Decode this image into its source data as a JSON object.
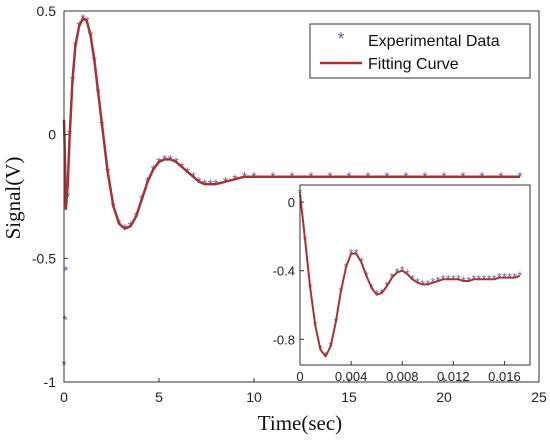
{
  "chart_data": [
    {
      "type": "line",
      "xlabel": "Time(sec)",
      "ylabel": "Signal(V)",
      "xlim": [
        0,
        25
      ],
      "ylim": [
        -1,
        0.5
      ],
      "x_ticks": [
        "0",
        "5",
        "10",
        "15",
        "20",
        "25"
      ],
      "y_ticks": [
        "0.5",
        "0",
        "-0.5",
        "-1"
      ],
      "legend": {
        "placement": "top-right",
        "entries": [
          "Experimental Data",
          "Fitting Curve"
        ]
      },
      "series": [
        {
          "name": "Experimental Data",
          "marker": "asterisk",
          "color": "#5b6bb5",
          "x": [
            0,
            0.05,
            0.1,
            0.2,
            0.3,
            0.45,
            0.6,
            0.8,
            1.0,
            1.2,
            1.4,
            1.6,
            1.8,
            2.0,
            2.3,
            2.6,
            2.9,
            3.2,
            3.5,
            3.8,
            4.1,
            4.4,
            4.7,
            5.0,
            5.3,
            5.6,
            5.9,
            6.2,
            6.5,
            6.8,
            7.1,
            7.4,
            7.7,
            8.0,
            8.5,
            9.0,
            9.5,
            10,
            11,
            12,
            13,
            14,
            15,
            16,
            17,
            18,
            19,
            20,
            21,
            22,
            23,
            24
          ],
          "y": [
            -0.93,
            -0.75,
            -0.55,
            -0.25,
            0.0,
            0.22,
            0.36,
            0.44,
            0.47,
            0.46,
            0.4,
            0.3,
            0.17,
            0.04,
            -0.15,
            -0.29,
            -0.36,
            -0.38,
            -0.37,
            -0.33,
            -0.26,
            -0.19,
            -0.14,
            -0.11,
            -0.1,
            -0.1,
            -0.11,
            -0.13,
            -0.15,
            -0.17,
            -0.19,
            -0.2,
            -0.2,
            -0.2,
            -0.19,
            -0.18,
            -0.17,
            -0.17,
            -0.17,
            -0.17,
            -0.17,
            -0.17,
            -0.17,
            -0.17,
            -0.17,
            -0.17,
            -0.17,
            -0.17,
            -0.17,
            -0.17,
            -0.17,
            -0.17
          ]
        },
        {
          "name": "Fitting Curve",
          "color": "#a83232",
          "x": [
            0,
            0.05,
            0.1,
            0.2,
            0.3,
            0.45,
            0.6,
            0.8,
            1.0,
            1.2,
            1.4,
            1.6,
            1.8,
            2.0,
            2.3,
            2.6,
            2.9,
            3.2,
            3.5,
            3.8,
            4.1,
            4.4,
            4.7,
            5.0,
            5.3,
            5.6,
            5.9,
            6.2,
            6.5,
            6.8,
            7.1,
            7.4,
            7.7,
            8.0,
            8.5,
            9.0,
            9.5,
            10,
            11,
            12,
            13,
            14,
            15,
            16,
            17,
            18,
            19,
            20,
            21,
            22,
            23,
            24
          ],
          "y": [
            0.06,
            -0.1,
            -0.3,
            -0.2,
            0.0,
            0.22,
            0.36,
            0.44,
            0.47,
            0.46,
            0.4,
            0.3,
            0.17,
            0.04,
            -0.15,
            -0.29,
            -0.36,
            -0.38,
            -0.37,
            -0.33,
            -0.26,
            -0.19,
            -0.14,
            -0.11,
            -0.1,
            -0.1,
            -0.11,
            -0.13,
            -0.15,
            -0.17,
            -0.19,
            -0.2,
            -0.2,
            -0.2,
            -0.19,
            -0.18,
            -0.17,
            -0.17,
            -0.17,
            -0.17,
            -0.17,
            -0.17,
            -0.17,
            -0.17,
            -0.17,
            -0.17,
            -0.17,
            -0.17,
            -0.17,
            -0.17,
            -0.17,
            -0.17
          ]
        }
      ]
    },
    {
      "type": "line",
      "inset": true,
      "xlim": [
        0,
        0.018
      ],
      "ylim": [
        -0.95,
        0.1
      ],
      "x_ticks": [
        "0",
        "0.004",
        "0.008",
        "0.012",
        "0.016"
      ],
      "y_ticks": [
        "0",
        "-0.4",
        "-0.8"
      ],
      "series": [
        {
          "name": "Experimental Data",
          "marker": "asterisk",
          "color": "#5b6bb5",
          "x": [
            0.0,
            0.0004,
            0.0008,
            0.0012,
            0.0016,
            0.002,
            0.0024,
            0.0028,
            0.0032,
            0.0036,
            0.004,
            0.0044,
            0.0048,
            0.0052,
            0.0056,
            0.006,
            0.0064,
            0.0068,
            0.0072,
            0.0076,
            0.008,
            0.0084,
            0.0088,
            0.0092,
            0.0096,
            0.01,
            0.0104,
            0.0108,
            0.0112,
            0.0116,
            0.012,
            0.0124,
            0.0128,
            0.0132,
            0.0136,
            0.014,
            0.0144,
            0.0148,
            0.0152,
            0.0156,
            0.016,
            0.0164,
            0.0168,
            0.0172
          ],
          "y": [
            0.05,
            -0.22,
            -0.5,
            -0.72,
            -0.86,
            -0.9,
            -0.84,
            -0.7,
            -0.52,
            -0.38,
            -0.3,
            -0.3,
            -0.35,
            -0.43,
            -0.5,
            -0.54,
            -0.53,
            -0.49,
            -0.44,
            -0.41,
            -0.4,
            -0.42,
            -0.45,
            -0.47,
            -0.48,
            -0.48,
            -0.47,
            -0.46,
            -0.45,
            -0.45,
            -0.45,
            -0.45,
            -0.46,
            -0.46,
            -0.45,
            -0.45,
            -0.45,
            -0.45,
            -0.45,
            -0.44,
            -0.44,
            -0.44,
            -0.44,
            -0.43
          ]
        },
        {
          "name": "Fitting Curve",
          "color": "#a83232",
          "x": [
            0.0,
            0.0004,
            0.0008,
            0.0012,
            0.0016,
            0.002,
            0.0024,
            0.0028,
            0.0032,
            0.0036,
            0.004,
            0.0044,
            0.0048,
            0.0052,
            0.0056,
            0.006,
            0.0064,
            0.0068,
            0.0072,
            0.0076,
            0.008,
            0.0084,
            0.0088,
            0.0092,
            0.0096,
            0.01,
            0.0104,
            0.0108,
            0.0112,
            0.0116,
            0.012,
            0.0124,
            0.0128,
            0.0132,
            0.0136,
            0.014,
            0.0144,
            0.0148,
            0.0152,
            0.0156,
            0.016,
            0.0164,
            0.0168,
            0.0172
          ],
          "y": [
            0.05,
            -0.22,
            -0.5,
            -0.72,
            -0.86,
            -0.9,
            -0.84,
            -0.7,
            -0.52,
            -0.38,
            -0.3,
            -0.3,
            -0.35,
            -0.43,
            -0.5,
            -0.54,
            -0.53,
            -0.49,
            -0.44,
            -0.41,
            -0.4,
            -0.42,
            -0.45,
            -0.47,
            -0.48,
            -0.48,
            -0.47,
            -0.46,
            -0.45,
            -0.45,
            -0.45,
            -0.45,
            -0.46,
            -0.46,
            -0.45,
            -0.45,
            -0.45,
            -0.45,
            -0.45,
            -0.44,
            -0.44,
            -0.44,
            -0.44,
            -0.43
          ]
        }
      ]
    }
  ]
}
